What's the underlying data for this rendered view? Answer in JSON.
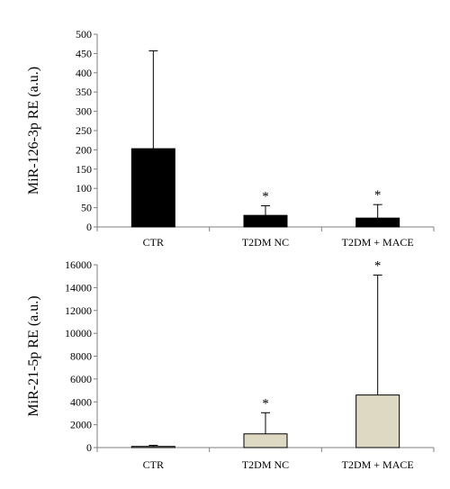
{
  "chart_data": [
    {
      "type": "bar",
      "ylabel": "MiR-126-3p    RE (a.u.)",
      "categories": [
        "CTR",
        "T2DM NC",
        "T2DM + MACE"
      ],
      "values": [
        203,
        30,
        23
      ],
      "error_upper": [
        457,
        55,
        58
      ],
      "significance": [
        "",
        "*",
        "*"
      ],
      "ylim": [
        0,
        500
      ],
      "yticks": [
        0,
        50,
        100,
        150,
        200,
        250,
        300,
        350,
        400,
        450,
        500
      ],
      "bar_color": "#000000",
      "bar_edge": "#000000",
      "grid": false
    },
    {
      "type": "bar",
      "ylabel": "MiR-21-5p    RE (a.u.)",
      "categories": [
        "CTR",
        "T2DM NC",
        "T2DM + MACE"
      ],
      "values": [
        100,
        1200,
        4600
      ],
      "error_upper": [
        200,
        3050,
        15100
      ],
      "significance": [
        "",
        "*",
        "*"
      ],
      "ylim": [
        0,
        16000
      ],
      "yticks": [
        0,
        2000,
        4000,
        6000,
        8000,
        10000,
        12000,
        14000,
        16000
      ],
      "bar_color": "#ddd9c3",
      "bar_edge": "#000000",
      "grid": false
    }
  ]
}
